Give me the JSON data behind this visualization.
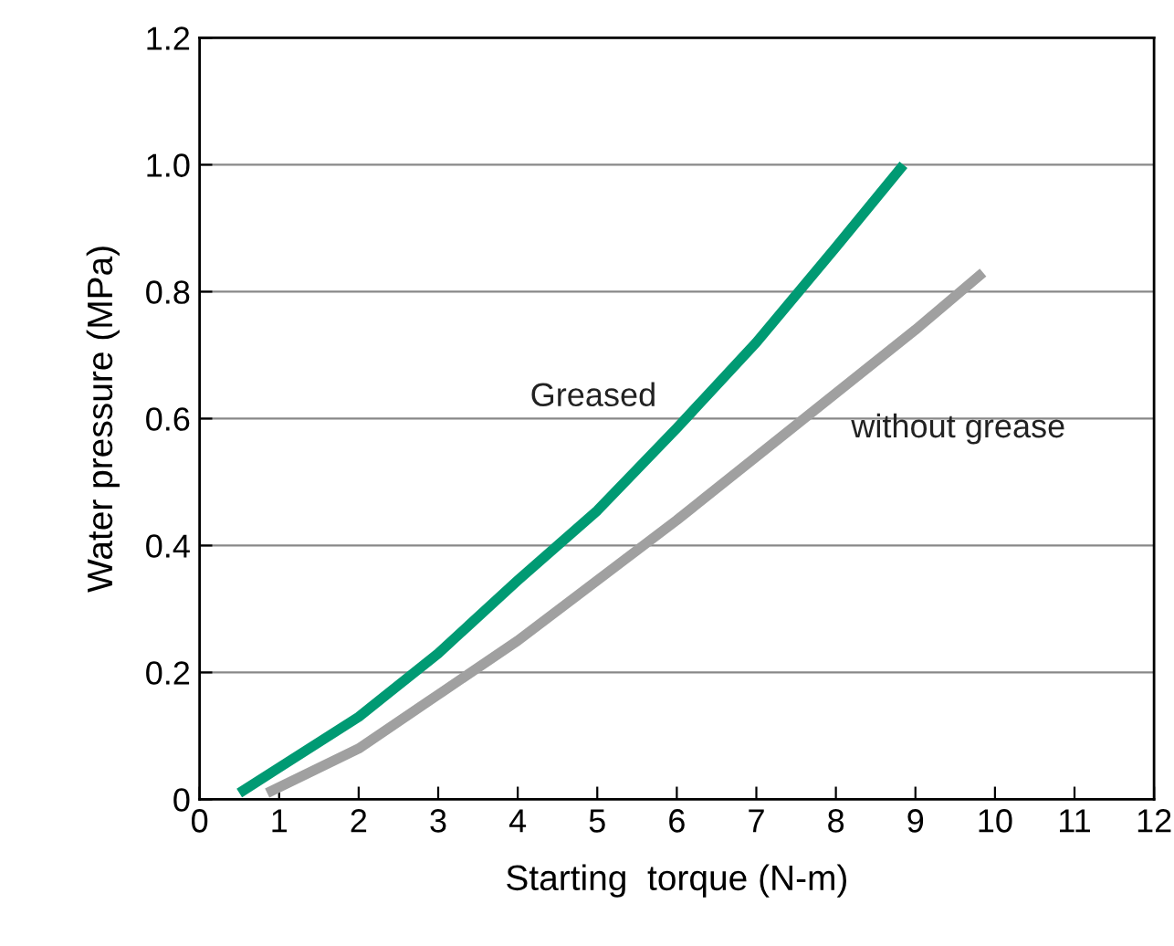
{
  "chart_data": {
    "type": "line",
    "xlabel": "Starting  torque (N-m)",
    "ylabel": "Water pressure (MPa)",
    "xlim": [
      0,
      12
    ],
    "xticks": [
      0,
      1,
      2,
      3,
      4,
      5,
      6,
      7,
      8,
      9,
      10,
      11,
      12
    ],
    "ylim": [
      0,
      1.2
    ],
    "yticks": [
      0,
      0.2,
      0.4,
      0.6,
      0.8,
      {
        "value": 1.0,
        "label": "1.0"
      },
      1.2
    ],
    "grid": "y",
    "legend": false,
    "marker": "none",
    "line_style": "solid",
    "series": [
      {
        "name": "Greased",
        "color": "#009a73",
        "x": [
          0.5,
          1,
          2,
          3,
          4,
          5,
          6,
          7,
          8,
          8.85
        ],
        "values": [
          0.01,
          0.05,
          0.13,
          0.23,
          0.345,
          0.455,
          0.585,
          0.72,
          0.87,
          1.0
        ]
      },
      {
        "name": "without grease",
        "color": "#a0a0a0",
        "x": [
          0.85,
          2,
          3,
          4,
          5,
          6,
          7,
          8,
          9,
          9.85
        ],
        "values": [
          0.01,
          0.08,
          0.165,
          0.25,
          0.345,
          0.44,
          0.54,
          0.64,
          0.74,
          0.83
        ]
      }
    ]
  }
}
